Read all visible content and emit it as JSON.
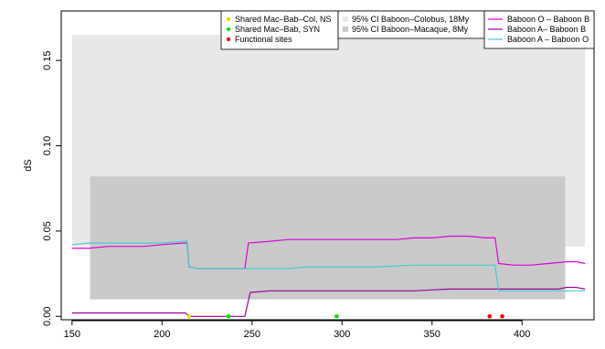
{
  "chart_data": {
    "type": "line",
    "ylabel": "dS",
    "xlabel": "",
    "xlim": [
      144,
      440
    ],
    "ylim": [
      -0.002,
      0.179
    ],
    "x_ticks": [
      150,
      200,
      250,
      300,
      350,
      400
    ],
    "y_ticks": [
      0.0,
      0.05,
      0.1,
      0.15
    ],
    "y_tick_labels": [
      "0.00",
      "0.05",
      "0.10",
      "0.15"
    ],
    "grid": false,
    "bands": [
      {
        "name": "95% CI Baboon–Colobus, 18My",
        "x": [
          150,
          435
        ],
        "y": [
          0.041,
          0.165
        ],
        "color": "#e8e8e8"
      },
      {
        "name": "95% CI Baboon–Macaque, 8My",
        "x": [
          160,
          424
        ],
        "y": [
          0.01,
          0.082
        ],
        "color": "#cacaca"
      }
    ],
    "series": [
      {
        "name": "Baboon O – Baboon B",
        "color": "#e000e0",
        "points": [
          [
            150,
            0.04
          ],
          [
            160,
            0.04
          ],
          [
            170,
            0.041
          ],
          [
            180,
            0.041
          ],
          [
            190,
            0.041
          ],
          [
            200,
            0.042
          ],
          [
            212,
            0.043
          ],
          [
            214,
            0.043
          ],
          [
            215,
            0.029
          ],
          [
            220,
            0.028
          ],
          [
            230,
            0.028
          ],
          [
            240,
            0.028
          ],
          [
            246,
            0.028
          ],
          [
            248,
            0.043
          ],
          [
            260,
            0.044
          ],
          [
            270,
            0.045
          ],
          [
            280,
            0.045
          ],
          [
            290,
            0.045
          ],
          [
            300,
            0.045
          ],
          [
            310,
            0.045
          ],
          [
            320,
            0.045
          ],
          [
            330,
            0.045
          ],
          [
            340,
            0.046
          ],
          [
            350,
            0.046
          ],
          [
            360,
            0.047
          ],
          [
            370,
            0.047
          ],
          [
            380,
            0.046
          ],
          [
            385,
            0.046
          ],
          [
            387,
            0.031
          ],
          [
            395,
            0.03
          ],
          [
            405,
            0.03
          ],
          [
            415,
            0.031
          ],
          [
            425,
            0.032
          ],
          [
            430,
            0.032
          ],
          [
            435,
            0.031
          ]
        ]
      },
      {
        "name": "Baboon A– Baboon B",
        "color": "#a000a0",
        "points": [
          [
            150,
            0.002
          ],
          [
            170,
            0.002
          ],
          [
            190,
            0.002
          ],
          [
            213,
            0.002
          ],
          [
            215,
            0.0
          ],
          [
            230,
            0.0
          ],
          [
            240,
            0.0
          ],
          [
            246,
            0.0
          ],
          [
            249,
            0.014
          ],
          [
            260,
            0.015
          ],
          [
            280,
            0.015
          ],
          [
            300,
            0.015
          ],
          [
            320,
            0.015
          ],
          [
            340,
            0.015
          ],
          [
            360,
            0.016
          ],
          [
            380,
            0.016
          ],
          [
            385,
            0.016
          ],
          [
            390,
            0.016
          ],
          [
            400,
            0.016
          ],
          [
            410,
            0.016
          ],
          [
            420,
            0.016
          ],
          [
            425,
            0.017
          ],
          [
            430,
            0.017
          ],
          [
            435,
            0.016
          ]
        ]
      },
      {
        "name": "Baboon A – Baboon O",
        "color": "#40d0d0",
        "points": [
          [
            150,
            0.042
          ],
          [
            160,
            0.043
          ],
          [
            170,
            0.043
          ],
          [
            180,
            0.043
          ],
          [
            190,
            0.043
          ],
          [
            200,
            0.043
          ],
          [
            212,
            0.044
          ],
          [
            214,
            0.044
          ],
          [
            215,
            0.029
          ],
          [
            220,
            0.028
          ],
          [
            230,
            0.028
          ],
          [
            240,
            0.028
          ],
          [
            250,
            0.028
          ],
          [
            260,
            0.028
          ],
          [
            270,
            0.028
          ],
          [
            280,
            0.029
          ],
          [
            290,
            0.029
          ],
          [
            300,
            0.029
          ],
          [
            320,
            0.029
          ],
          [
            340,
            0.03
          ],
          [
            360,
            0.03
          ],
          [
            380,
            0.03
          ],
          [
            385,
            0.03
          ],
          [
            387,
            0.015
          ],
          [
            395,
            0.015
          ],
          [
            405,
            0.015
          ],
          [
            415,
            0.015
          ],
          [
            425,
            0.015
          ],
          [
            435,
            0.015
          ]
        ]
      }
    ],
    "sites": [
      {
        "group": "Shared Mac–Bab–Col, NS",
        "x": 215,
        "y": 0.0,
        "color": "#e0e000"
      },
      {
        "group": "Shared Mac–Bab, SYN",
        "x": 237,
        "y": 0.0,
        "color": "#00e000"
      },
      {
        "group": "Shared Mac–Bab, SYN",
        "x": 297,
        "y": 0.0,
        "color": "#00e000"
      },
      {
        "group": "Functional sites",
        "x": 382,
        "y": 0.0,
        "color": "#ee0000"
      },
      {
        "group": "Functional sites",
        "x": 389,
        "y": 0.0,
        "color": "#ee0000"
      }
    ],
    "legends": [
      {
        "placement": "top-left",
        "entries": [
          {
            "label": "Shared Mac–Bab–Col, NS",
            "color": "#e0e000",
            "symbol": "dot"
          },
          {
            "label": "Shared Mac–Bab, SYN",
            "color": "#00e000",
            "symbol": "dot"
          },
          {
            "label": "Functional sites",
            "color": "#ee0000",
            "symbol": "dot"
          }
        ]
      },
      {
        "placement": "top-center",
        "entries": [
          {
            "label": "95% CI Baboon–Colobus, 18My",
            "color": "#e8e8e8",
            "symbol": "square"
          },
          {
            "label": "95% CI Baboon–Macaque, 8My",
            "color": "#cacaca",
            "symbol": "square"
          }
        ]
      },
      {
        "placement": "top-right",
        "entries": [
          {
            "label": "Baboon O – Baboon B",
            "color": "#e000e0",
            "symbol": "line"
          },
          {
            "label": "Baboon A– Baboon B",
            "color": "#a000a0",
            "symbol": "line"
          },
          {
            "label": "Baboon A – Baboon O",
            "color": "#40d0d0",
            "symbol": "line"
          }
        ]
      }
    ]
  }
}
